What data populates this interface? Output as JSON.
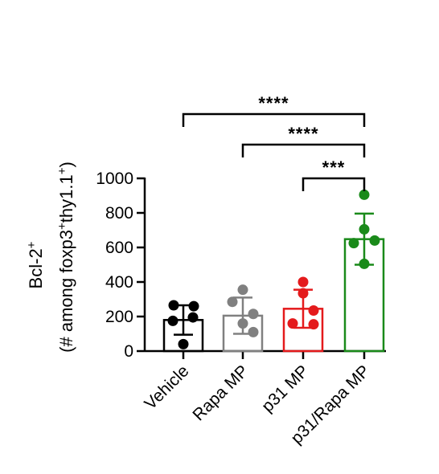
{
  "chart_data": {
    "type": "bar",
    "ylabel_line1": "Bcl-2",
    "ylabel_line1_sup": "+",
    "ylabel_line2": [
      {
        "text": "(# among foxp3",
        "sup": false
      },
      {
        "text": "+",
        "sup": true
      },
      {
        "text": "thy1.1",
        "sup": false
      },
      {
        "text": "+",
        "sup": true
      },
      {
        "text": ")",
        "sup": false
      }
    ],
    "ylim": [
      0,
      1000
    ],
    "yticks": [
      0,
      200,
      400,
      600,
      800,
      1000
    ],
    "categories": [
      "Vehicle",
      "Rapa MP",
      "p31 MP",
      "p31/Rapa MP"
    ],
    "colors": [
      "#000000",
      "#808080",
      "#e41a1c",
      "#1a8a1a"
    ],
    "means": [
      180,
      205,
      245,
      648
    ],
    "sd": [
      85,
      105,
      110,
      148
    ],
    "points": [
      [
        265,
        260,
        195,
        175,
        40
      ],
      [
        355,
        285,
        215,
        160,
        110
      ],
      [
        400,
        335,
        235,
        160,
        155
      ],
      [
        905,
        705,
        640,
        625,
        505
      ]
    ],
    "significance": [
      {
        "from": 0,
        "to": 3,
        "label": "****"
      },
      {
        "from": 1,
        "to": 3,
        "label": "****"
      },
      {
        "from": 2,
        "to": 3,
        "label": "***"
      }
    ]
  }
}
